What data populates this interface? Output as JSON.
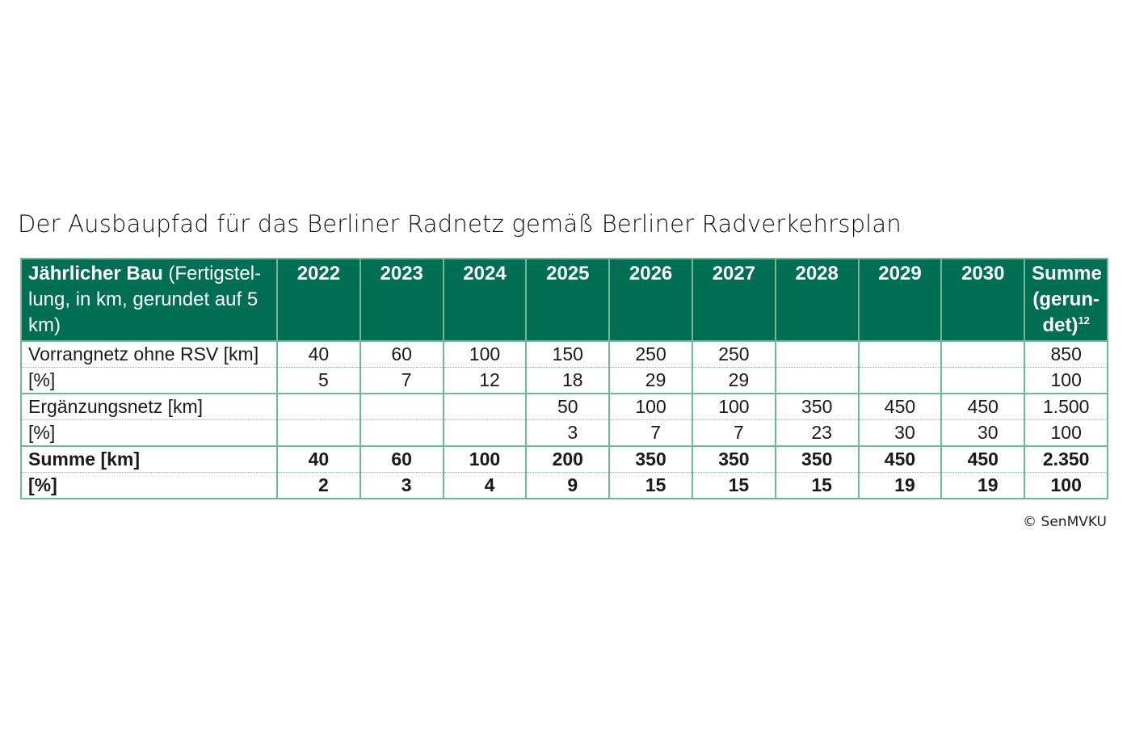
{
  "caption": "Der Ausbaupfad für das Berliner Radnetz gemäß Berliner Radverkehrsplan",
  "table": {
    "header": {
      "label_bold": "Jährlicher Bau",
      "label_rest": " (Fertigstel-lung, in km, gerundet auf 5 km)",
      "years": [
        "2022",
        "2023",
        "2024",
        "2025",
        "2026",
        "2027",
        "2028",
        "2029",
        "2030"
      ],
      "sum_label": "Summe (gerun-det)",
      "sum_footnote": "12"
    },
    "rows": [
      {
        "label": "Vorrangnetz ohne RSV [km]",
        "values": [
          "40",
          "60",
          "100",
          "150",
          "250",
          "250",
          "",
          "",
          ""
        ],
        "sum": "850"
      },
      {
        "label": "[%]",
        "values": [
          "5",
          "7",
          "12",
          "18",
          "29",
          "29",
          "",
          "",
          ""
        ],
        "sum": "100"
      },
      {
        "label": "Ergänzungsnetz [km]",
        "values": [
          "",
          "",
          "",
          "50",
          "100",
          "100",
          "350",
          "450",
          "450"
        ],
        "sum": "1.500"
      },
      {
        "label": "[%]",
        "values": [
          "",
          "",
          "",
          "3",
          "7",
          "7",
          "23",
          "30",
          "30"
        ],
        "sum": "100"
      },
      {
        "label": "Summe [km]",
        "values": [
          "40",
          "60",
          "100",
          "200",
          "350",
          "350",
          "350",
          "450",
          "450"
        ],
        "sum": "2.350"
      },
      {
        "label": "[%]",
        "values": [
          "2",
          "3",
          "4",
          "9",
          "15",
          "15",
          "15",
          "19",
          "19"
        ],
        "sum": "100"
      }
    ]
  },
  "copyright": "© SenMVKU",
  "colors": {
    "header_bg": "#006e52",
    "border": "#6fb89a"
  }
}
